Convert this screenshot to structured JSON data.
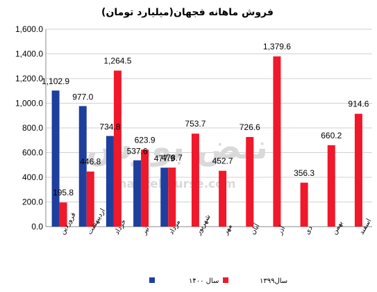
{
  "chart_data": {
    "type": "bar",
    "title": "فروش ماهانه فجهان(میلیارد تومان)",
    "categories": [
      "فروردین",
      "اردیبهشت",
      "خرداد",
      "تیر",
      "مرداد",
      "شهریور",
      "مهر",
      "آبان",
      "آذر",
      "دی",
      "بهمن",
      "اسفند"
    ],
    "series": [
      {
        "name": "سال ۱۴۰۰",
        "color": "#1f3f9e",
        "values": [
          1102.9,
          977.0,
          734.8,
          537.6,
          477.9,
          null,
          null,
          null,
          null,
          null,
          null,
          null
        ],
        "labels": [
          "1,102.9",
          "977.0",
          "734.8",
          "537.6",
          "477.9",
          null,
          null,
          null,
          null,
          null,
          null,
          null
        ]
      },
      {
        "name": "سال۱۳۹۹",
        "color": "#f0182b",
        "values": [
          195.8,
          446.8,
          1264.5,
          623.9,
          478.7,
          753.7,
          452.7,
          726.6,
          1379.6,
          356.3,
          660.2,
          914.6
        ],
        "labels": [
          "195.8",
          "446.8",
          "1,264.5",
          "623.9",
          "478.7",
          "753.7",
          "452.7",
          "726.6",
          "1,379.6",
          "356.3",
          "660.2",
          "914.6"
        ]
      }
    ],
    "ylim": [
      0,
      1600
    ],
    "yticks": [
      "0.0",
      "200.0",
      "400.0",
      "600.0",
      "800.0",
      "1,000.0",
      "1,200.0",
      "1,400.0",
      "1,600.0"
    ],
    "ytick_values": [
      0,
      200,
      400,
      600,
      800,
      1000,
      1200,
      1400,
      1600
    ],
    "grid": true,
    "legend_position": "bottom-center"
  },
  "watermark": {
    "brand": "نبض بورس",
    "url": "nabzebourse.com"
  }
}
